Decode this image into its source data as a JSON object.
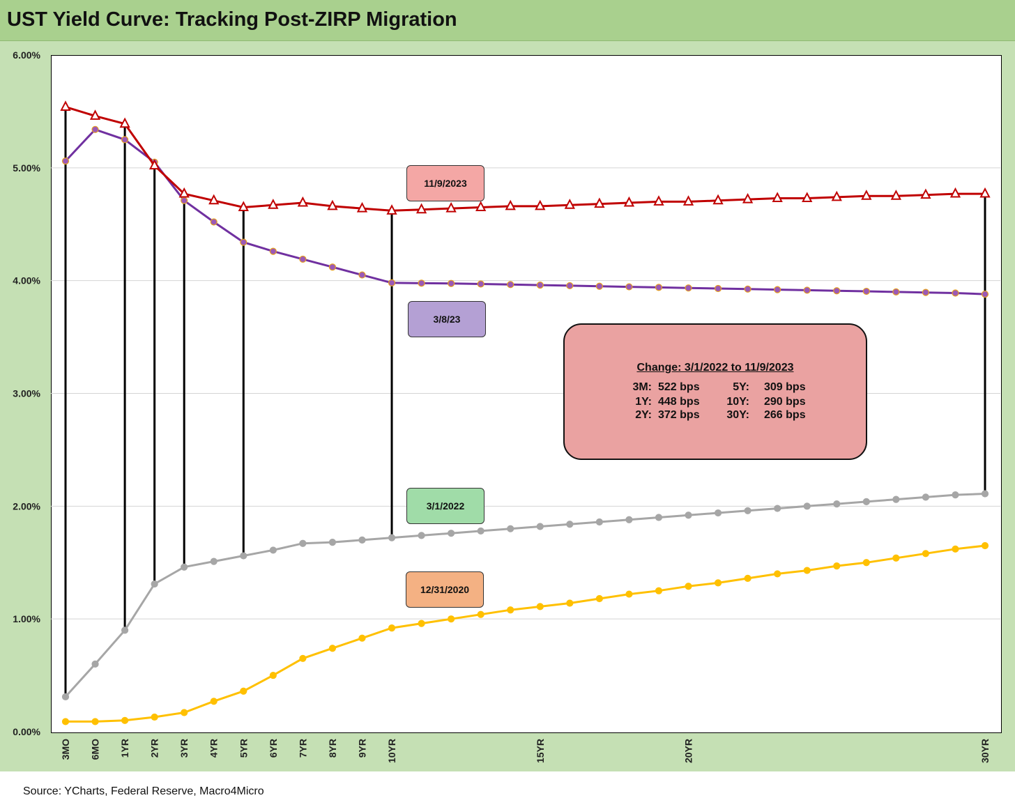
{
  "title": "UST Yield Curve: Tracking Post-ZIRP Migration",
  "source": "Source: YCharts, Federal Reserve, Macro4Micro",
  "colors": {
    "title_bg": "#a9d08e",
    "panel_bg": "#c5e0b4",
    "series_2023_11": "#c00000",
    "series_2023_03": "#7030a0",
    "series_2022_03": "#a6a6a6",
    "series_2020_12": "#ffc000",
    "box_2023_11": "#f4a7a5",
    "box_2023_03": "#b4a0d4",
    "box_2022_03": "#a0dca8",
    "box_2020_12": "#f4b183",
    "info_box": "#eaa2a1"
  },
  "labels": {
    "nov2023": "11/9/2023",
    "mar2023": "3/8/23",
    "mar2022": "3/1/2022",
    "dec2020": "12/31/2020"
  },
  "change_box": {
    "heading": "Change: 3/1/2022 to 11/9/2023",
    "rows": [
      {
        "t1": "3M:",
        "v1": "522 bps",
        "t2": "5Y:",
        "v2": "309 bps"
      },
      {
        "t1": "1Y:",
        "v1": "448 bps",
        "t2": "10Y:",
        "v2": "290 bps"
      },
      {
        "t1": "2Y:",
        "v1": "372 bps",
        "t2": "30Y:",
        "v2": "266 bps"
      }
    ]
  },
  "chart_data": {
    "type": "line",
    "title": "UST Yield Curve: Tracking Post-ZIRP Migration",
    "xlabel": "",
    "ylabel": "",
    "ylim": [
      0,
      6
    ],
    "y_ticks": [
      "0.00%",
      "1.00%",
      "2.00%",
      "3.00%",
      "4.00%",
      "5.00%",
      "6.00%"
    ],
    "grid": true,
    "x_tick_labels": [
      {
        "index": 0,
        "label": "3MO"
      },
      {
        "index": 1,
        "label": "6MO"
      },
      {
        "index": 2,
        "label": "1YR"
      },
      {
        "index": 3,
        "label": "2YR"
      },
      {
        "index": 4,
        "label": "3YR"
      },
      {
        "index": 5,
        "label": "4YR"
      },
      {
        "index": 6,
        "label": "5YR"
      },
      {
        "index": 7,
        "label": "6YR"
      },
      {
        "index": 8,
        "label": "7YR"
      },
      {
        "index": 9,
        "label": "8YR"
      },
      {
        "index": 10,
        "label": "9YR"
      },
      {
        "index": 11,
        "label": "10YR"
      },
      {
        "index": 16,
        "label": "15YR"
      },
      {
        "index": 21,
        "label": "20YR"
      },
      {
        "index": 31,
        "label": "30YR"
      }
    ],
    "x_count": 32,
    "series": [
      {
        "name": "11/9/2023",
        "marker": "triangle",
        "values": [
          5.54,
          5.46,
          5.39,
          5.02,
          4.77,
          4.71,
          4.65,
          4.67,
          4.69,
          4.66,
          4.64,
          4.62,
          4.63,
          4.64,
          4.65,
          4.66,
          4.66,
          4.67,
          4.68,
          4.69,
          4.7,
          4.7,
          4.71,
          4.72,
          4.73,
          4.73,
          4.74,
          4.75,
          4.75,
          4.76,
          4.77,
          4.77
        ]
      },
      {
        "name": "3/8/23",
        "marker": "circle",
        "values": [
          5.06,
          5.34,
          5.25,
          5.05,
          4.71,
          4.52,
          4.34,
          4.26,
          4.19,
          4.12,
          4.05,
          3.98,
          3.977,
          3.975,
          3.97,
          3.965,
          3.96,
          3.955,
          3.95,
          3.945,
          3.94,
          3.935,
          3.93,
          3.925,
          3.92,
          3.915,
          3.91,
          3.905,
          3.9,
          3.895,
          3.89,
          3.88
        ]
      },
      {
        "name": "3/1/2022",
        "marker": "circle",
        "values": [
          0.31,
          0.6,
          0.9,
          1.31,
          1.46,
          1.51,
          1.56,
          1.61,
          1.67,
          1.68,
          1.7,
          1.72,
          1.74,
          1.76,
          1.78,
          1.8,
          1.82,
          1.84,
          1.86,
          1.88,
          1.9,
          1.92,
          1.94,
          1.96,
          1.98,
          2.0,
          2.02,
          2.04,
          2.06,
          2.08,
          2.1,
          2.11
        ]
      },
      {
        "name": "12/31/2020",
        "marker": "circle",
        "values": [
          0.09,
          0.09,
          0.1,
          0.13,
          0.17,
          0.27,
          0.36,
          0.5,
          0.65,
          0.74,
          0.83,
          0.92,
          0.96,
          1.0,
          1.04,
          1.08,
          1.11,
          1.14,
          1.18,
          1.22,
          1.25,
          1.29,
          1.32,
          1.36,
          1.4,
          1.43,
          1.47,
          1.5,
          1.54,
          1.58,
          1.62,
          1.65
        ]
      }
    ],
    "connectors_at_index": [
      0,
      2,
      3,
      4,
      6,
      11,
      31
    ]
  }
}
